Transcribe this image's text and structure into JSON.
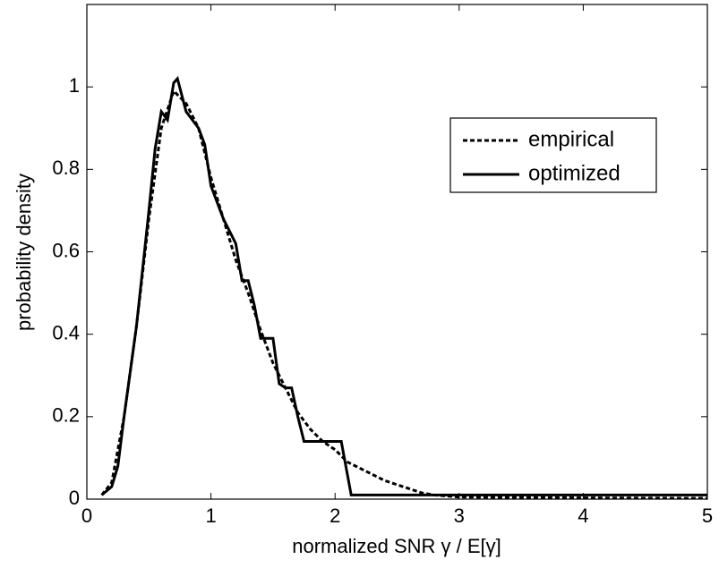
{
  "chart_data": {
    "type": "line",
    "xlabel": "normalized SNR γ / E[γ]",
    "ylabel": "probability density",
    "xlim": [
      0,
      5
    ],
    "xticks": [
      0,
      1,
      2,
      3,
      4,
      5
    ],
    "ylim": [
      0,
      1.2
    ],
    "yticks": [
      0,
      0.2,
      0.4,
      0.6,
      0.8,
      1
    ],
    "series": [
      {
        "name": "empirical",
        "color": "#000000",
        "style": "dashed",
        "x": [
          0.12,
          0.2,
          0.3,
          0.4,
          0.5,
          0.6,
          0.7,
          0.8,
          0.9,
          1.0,
          1.1,
          1.2,
          1.3,
          1.4,
          1.5,
          1.6,
          1.7,
          1.8,
          1.9,
          2.0,
          2.1,
          2.2,
          2.3,
          2.4,
          2.5,
          2.6,
          2.7,
          2.8,
          3.0,
          4.0,
          5.0
        ],
        "values": [
          0.01,
          0.04,
          0.2,
          0.42,
          0.68,
          0.9,
          0.99,
          0.96,
          0.9,
          0.78,
          0.68,
          0.58,
          0.5,
          0.41,
          0.33,
          0.27,
          0.21,
          0.17,
          0.14,
          0.12,
          0.09,
          0.075,
          0.06,
          0.045,
          0.035,
          0.025,
          0.015,
          0.01,
          0.005,
          0.003,
          0.002
        ]
      },
      {
        "name": "optimized",
        "color": "#000000",
        "style": "solid",
        "x": [
          0.12,
          0.2,
          0.25,
          0.3,
          0.4,
          0.5,
          0.55,
          0.6,
          0.65,
          0.7,
          0.73,
          0.8,
          0.9,
          0.95,
          1.0,
          1.05,
          1.1,
          1.15,
          1.2,
          1.25,
          1.3,
          1.35,
          1.4,
          1.5,
          1.55,
          1.6,
          1.65,
          1.7,
          1.75,
          2.05,
          2.13,
          5.0
        ],
        "values": [
          0.01,
          0.03,
          0.08,
          0.2,
          0.42,
          0.7,
          0.85,
          0.94,
          0.92,
          1.01,
          1.02,
          0.94,
          0.9,
          0.86,
          0.76,
          0.72,
          0.68,
          0.65,
          0.62,
          0.53,
          0.53,
          0.47,
          0.39,
          0.39,
          0.28,
          0.27,
          0.27,
          0.2,
          0.14,
          0.14,
          0.01,
          0.01
        ]
      }
    ]
  }
}
